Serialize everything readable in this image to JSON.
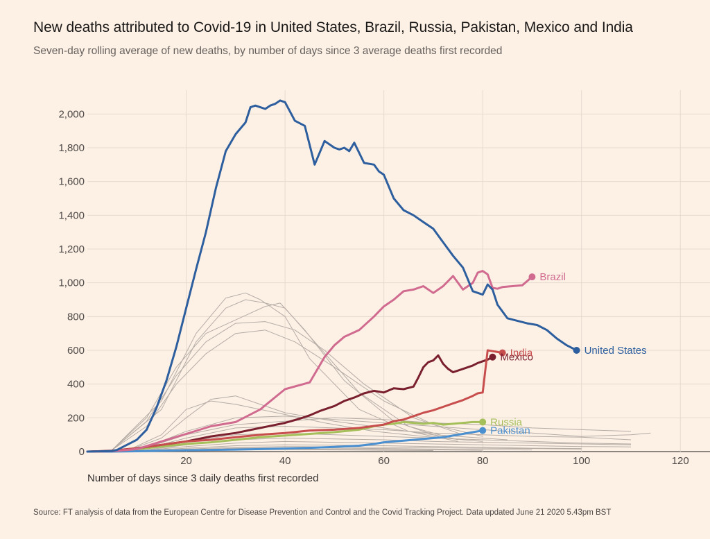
{
  "title": "New deaths attributed to Covid-19 in United States, Brazil, Russia, Pakistan, Mexico and India",
  "subtitle": "Seven-day rolling average of new deaths, by number of days since 3 average deaths first recorded",
  "source": "Source: FT analysis of data from the European Centre for Disease Prevention and Control and the Covid Tracking Project. Data updated June 21 2020 5.43pm BST",
  "chart_data": {
    "type": "line",
    "xlabel": "Number of days since 3 daily deaths first recorded",
    "ylabel": "",
    "xlim": [
      0,
      126
    ],
    "ylim": [
      0,
      2100
    ],
    "xticks": [
      20,
      40,
      60,
      80,
      100,
      120
    ],
    "xtick_labels": [
      "20",
      "40",
      "60",
      "80",
      "100",
      "120"
    ],
    "yticks": [
      0,
      200,
      400,
      600,
      800,
      1000,
      1200,
      1400,
      1600,
      1800,
      2000
    ],
    "ytick_labels": [
      "0",
      "200",
      "400",
      "600",
      "800",
      "1,000",
      "1,200",
      "1,400",
      "1,600",
      "1,800",
      "2,000"
    ],
    "grid": true,
    "series": [
      {
        "name": "United States",
        "color": "#2d5e9e",
        "x": [
          0,
          5,
          6,
          8,
          10,
          12,
          14,
          16,
          18,
          20,
          22,
          24,
          26,
          28,
          30,
          32,
          33,
          34,
          35,
          36,
          37,
          38,
          39,
          40,
          42,
          44,
          46,
          48,
          49,
          50,
          51,
          52,
          53,
          54,
          56,
          58,
          59,
          60,
          62,
          64,
          66,
          68,
          70,
          72,
          74,
          76,
          78,
          80,
          81,
          82,
          83,
          85,
          87,
          89,
          91,
          93,
          95,
          97,
          99
        ],
        "y": [
          0,
          3,
          10,
          40,
          70,
          130,
          260,
          420,
          620,
          850,
          1080,
          1300,
          1560,
          1780,
          1880,
          1950,
          2040,
          2050,
          2040,
          2030,
          2050,
          2060,
          2080,
          2070,
          1960,
          1930,
          1700,
          1840,
          1820,
          1800,
          1790,
          1800,
          1780,
          1830,
          1710,
          1700,
          1660,
          1640,
          1500,
          1430,
          1400,
          1360,
          1320,
          1240,
          1160,
          1090,
          950,
          930,
          990,
          960,
          870,
          790,
          775,
          760,
          750,
          720,
          670,
          630,
          600
        ],
        "label": "United States",
        "endpoint": {
          "x": 99,
          "y": 600
        }
      },
      {
        "name": "Brazil",
        "color": "#d06b8f",
        "x": [
          0,
          5,
          10,
          15,
          20,
          25,
          30,
          35,
          40,
          45,
          48,
          50,
          52,
          55,
          58,
          60,
          62,
          64,
          66,
          68,
          70,
          72,
          74,
          76,
          78,
          79,
          80,
          81,
          82,
          83,
          84,
          86,
          88,
          90
        ],
        "y": [
          0,
          2,
          15,
          60,
          105,
          150,
          175,
          250,
          370,
          410,
          560,
          630,
          680,
          720,
          800,
          860,
          900,
          950,
          960,
          980,
          940,
          980,
          1040,
          960,
          1000,
          1060,
          1070,
          1050,
          970,
          965,
          975,
          980,
          985,
          1035
        ],
        "label": "Brazil",
        "endpoint": {
          "x": 90,
          "y": 1035
        }
      },
      {
        "name": "India",
        "color": "#c84d4d",
        "x": [
          0,
          5,
          10,
          15,
          20,
          25,
          30,
          35,
          40,
          45,
          50,
          55,
          60,
          62,
          64,
          66,
          68,
          70,
          72,
          74,
          76,
          78,
          79,
          80,
          81,
          82,
          83,
          84
        ],
        "y": [
          0,
          3,
          20,
          40,
          60,
          70,
          85,
          100,
          110,
          125,
          130,
          140,
          160,
          180,
          190,
          210,
          230,
          245,
          265,
          285,
          305,
          330,
          345,
          350,
          600,
          595,
          590,
          585
        ],
        "label": "India",
        "endpoint": {
          "x": 84,
          "y": 585
        }
      },
      {
        "name": "Mexico",
        "color": "#7a1f2e",
        "x": [
          0,
          5,
          10,
          15,
          20,
          25,
          30,
          35,
          40,
          43,
          45,
          47,
          50,
          52,
          54,
          56,
          58,
          60,
          62,
          64,
          66,
          67,
          68,
          69,
          70,
          71,
          72,
          73,
          74,
          76,
          78,
          79,
          80,
          81,
          82
        ],
        "y": [
          0,
          5,
          20,
          40,
          60,
          90,
          110,
          140,
          170,
          195,
          215,
          240,
          270,
          300,
          320,
          345,
          360,
          350,
          375,
          370,
          385,
          440,
          500,
          530,
          540,
          570,
          520,
          490,
          470,
          490,
          510,
          525,
          535,
          545,
          560
        ],
        "label": "Mexico",
        "endpoint": {
          "x": 82,
          "y": 560
        }
      },
      {
        "name": "Russia",
        "color": "#a5bf5a",
        "x": [
          0,
          5,
          10,
          15,
          20,
          25,
          30,
          35,
          40,
          45,
          50,
          55,
          58,
          60,
          62,
          64,
          66,
          68,
          70,
          72,
          74,
          76,
          78,
          80
        ],
        "y": [
          0,
          3,
          15,
          30,
          45,
          55,
          70,
          85,
          95,
          105,
          115,
          130,
          150,
          160,
          165,
          175,
          170,
          165,
          170,
          160,
          165,
          170,
          175,
          175
        ],
        "label": "Russia",
        "endpoint": {
          "x": 80,
          "y": 175
        }
      },
      {
        "name": "Pakistan",
        "color": "#4a8fcf",
        "x": [
          0,
          5,
          10,
          15,
          20,
          25,
          30,
          35,
          40,
          45,
          50,
          55,
          58,
          60,
          62,
          64,
          66,
          68,
          70,
          72,
          74,
          76,
          78,
          80
        ],
        "y": [
          0,
          0,
          2,
          5,
          8,
          10,
          12,
          15,
          18,
          22,
          28,
          35,
          45,
          55,
          60,
          65,
          70,
          75,
          80,
          85,
          95,
          105,
          115,
          125
        ],
        "label": "Pakistan",
        "endpoint": {
          "x": 80,
          "y": 125
        }
      }
    ],
    "background_series": [
      {
        "x": [
          5,
          15,
          22,
          28,
          32,
          35,
          40,
          45,
          55,
          65,
          75
        ],
        "y": [
          10,
          300,
          700,
          910,
          940,
          900,
          800,
          550,
          250,
          120,
          60
        ]
      },
      {
        "x": [
          5,
          15,
          22,
          28,
          32,
          36,
          40,
          46,
          55,
          65,
          75
        ],
        "y": [
          10,
          250,
          650,
          850,
          900,
          880,
          850,
          650,
          350,
          150,
          70
        ]
      },
      {
        "x": [
          5,
          12,
          18,
          24,
          30,
          36,
          39,
          44,
          52,
          62,
          72
        ],
        "y": [
          10,
          200,
          500,
          700,
          780,
          860,
          880,
          720,
          420,
          180,
          80
        ]
      },
      {
        "x": [
          5,
          12,
          18,
          24,
          30,
          36,
          42,
          48,
          56,
          66,
          76
        ],
        "y": [
          10,
          180,
          450,
          650,
          760,
          770,
          720,
          600,
          400,
          200,
          100
        ]
      },
      {
        "x": [
          5,
          12,
          18,
          24,
          30,
          36,
          42,
          50,
          60,
          70,
          80
        ],
        "y": [
          10,
          150,
          400,
          580,
          700,
          720,
          650,
          500,
          300,
          160,
          90
        ]
      },
      {
        "x": [
          8,
          15,
          20,
          25,
          30,
          35,
          40,
          48,
          58,
          68,
          80
        ],
        "y": [
          5,
          100,
          250,
          300,
          280,
          250,
          220,
          170,
          120,
          90,
          60
        ]
      },
      {
        "x": [
          8,
          15,
          20,
          25,
          30,
          35,
          40,
          50,
          60,
          70,
          85
        ],
        "y": [
          5,
          80,
          200,
          310,
          330,
          280,
          230,
          180,
          140,
          100,
          70
        ]
      },
      {
        "x": [
          10,
          20,
          30,
          40,
          50,
          60,
          70,
          80,
          90,
          100,
          110,
          114
        ],
        "y": [
          5,
          120,
          200,
          210,
          190,
          170,
          150,
          130,
          110,
          90,
          100,
          110
        ]
      },
      {
        "x": [
          10,
          20,
          30,
          40,
          50,
          60,
          70,
          80,
          90,
          100,
          110
        ],
        "y": [
          5,
          100,
          160,
          180,
          200,
          190,
          170,
          160,
          140,
          130,
          120
        ]
      },
      {
        "x": [
          10,
          20,
          30,
          40,
          50,
          60,
          70,
          80,
          90,
          100,
          110
        ],
        "y": [
          5,
          80,
          140,
          150,
          140,
          130,
          110,
          100,
          90,
          85,
          70
        ]
      },
      {
        "x": [
          10,
          20,
          30,
          40,
          50,
          60,
          70,
          80,
          90,
          100,
          110
        ],
        "y": [
          5,
          60,
          100,
          110,
          100,
          90,
          80,
          70,
          60,
          50,
          45
        ]
      },
      {
        "x": [
          10,
          20,
          30,
          40,
          50,
          60,
          70,
          80,
          90,
          100,
          110
        ],
        "y": [
          3,
          40,
          70,
          80,
          75,
          70,
          60,
          55,
          50,
          45,
          40
        ]
      },
      {
        "x": [
          10,
          20,
          30,
          40,
          50,
          60,
          70,
          80,
          90,
          100,
          110
        ],
        "y": [
          2,
          30,
          50,
          60,
          55,
          50,
          45,
          40,
          35,
          30,
          28
        ]
      },
      {
        "x": [
          10,
          20,
          30,
          40,
          50,
          60,
          70,
          80,
          90,
          100
        ],
        "y": [
          2,
          20,
          35,
          40,
          38,
          35,
          30,
          25,
          20,
          18
        ]
      },
      {
        "x": [
          10,
          20,
          30,
          40,
          50,
          60,
          70,
          80,
          90,
          100
        ],
        "y": [
          1,
          15,
          25,
          30,
          28,
          25,
          22,
          20,
          18,
          15
        ]
      },
      {
        "x": [
          10,
          20,
          30,
          40,
          50,
          60,
          70,
          80,
          90
        ],
        "y": [
          1,
          10,
          20,
          22,
          20,
          18,
          15,
          12,
          10
        ]
      },
      {
        "x": [
          10,
          20,
          30,
          40,
          50,
          60,
          70,
          80
        ],
        "y": [
          1,
          8,
          14,
          15,
          14,
          12,
          10,
          8
        ]
      },
      {
        "x": [
          10,
          20,
          30,
          40,
          50,
          60,
          70
        ],
        "y": [
          0,
          5,
          10,
          12,
          10,
          8,
          6
        ]
      }
    ]
  }
}
